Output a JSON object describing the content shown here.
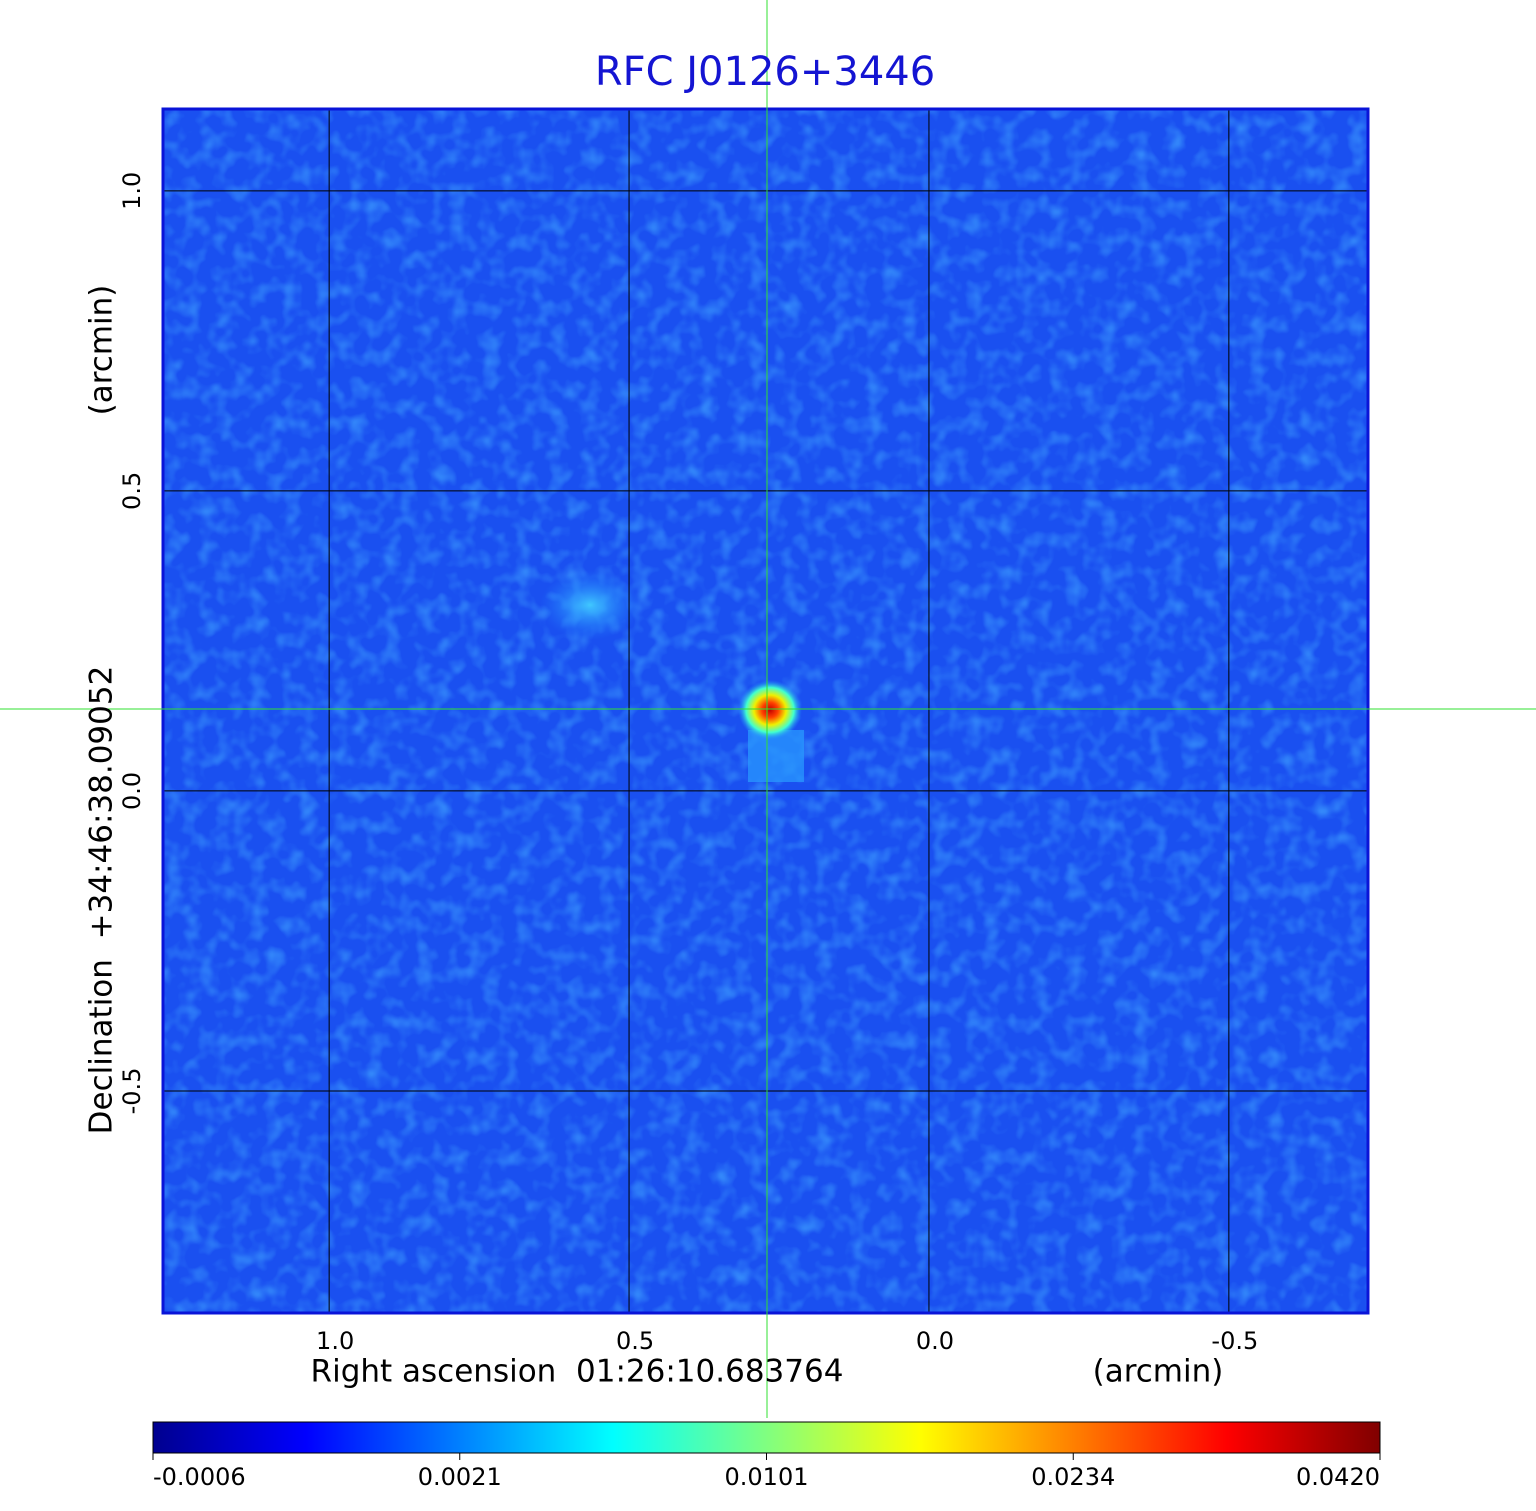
{
  "chart_data": {
    "type": "image",
    "title": "RFC J0126+3446",
    "xlabel": "Right ascension  01:26:10.683764",
    "xunit": "(arcmin)",
    "ylabel": "Declination  +34:46:38.09052",
    "yunit": "(arcmin)",
    "xlim": [
      1.277,
      -0.732
    ],
    "ylim": [
      -0.87,
      1.138
    ],
    "xticks": [
      {
        "value": 1,
        "label": "1.0"
      },
      {
        "value": 0.5,
        "label": "0.5"
      },
      {
        "value": 0,
        "label": "0.0"
      },
      {
        "value": -0.5,
        "label": "-0.5"
      }
    ],
    "yticks": [
      {
        "value": -0.5,
        "label": "-0.5"
      },
      {
        "value": 0,
        "label": "0.0"
      },
      {
        "value": 0.5,
        "label": "0.5"
      },
      {
        "value": 1,
        "label": "1.0"
      }
    ],
    "grid": true,
    "colormap": "jet",
    "colorbar_ticks": [
      -0.0006,
      0.0021,
      0.0101,
      0.0234,
      {
        "value": 0.042,
        "label": "0.0420"
      }
    ]
  }
}
